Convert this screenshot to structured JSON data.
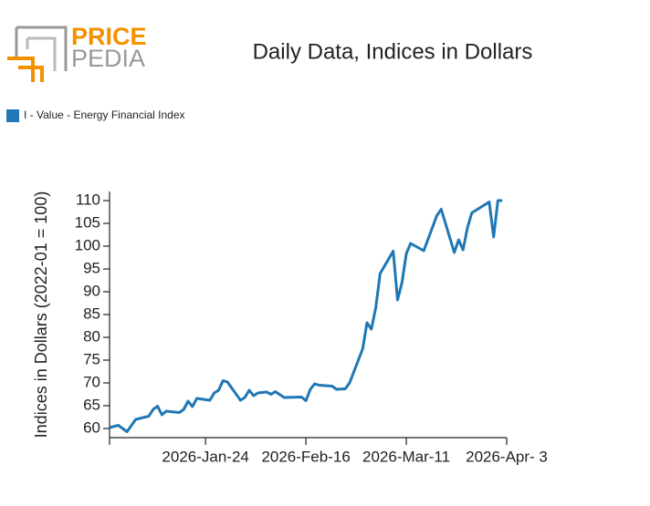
{
  "logo": {
    "top": "PRICE",
    "bottom": "PEDIA"
  },
  "chart_data": {
    "type": "line",
    "title": "Daily Data, Indices in Dollars",
    "y_label": "Indices in Dollars (2022-01 = 100)",
    "x": [
      "2026-01-02",
      "2026-01-04",
      "2026-01-06",
      "2026-01-08",
      "2026-01-11",
      "2026-01-12",
      "2026-01-13",
      "2026-01-14",
      "2026-01-15",
      "2026-01-18",
      "2026-01-19",
      "2026-01-20",
      "2026-01-21",
      "2026-01-22",
      "2026-01-25",
      "2026-01-26",
      "2026-01-27",
      "2026-01-28",
      "2026-01-29",
      "2026-02-01",
      "2026-02-02",
      "2026-02-03",
      "2026-02-04",
      "2026-02-05",
      "2026-02-07",
      "2026-02-08",
      "2026-02-09",
      "2026-02-11",
      "2026-02-15",
      "2026-02-16",
      "2026-02-17",
      "2026-02-18",
      "2026-02-19",
      "2026-02-22",
      "2026-02-23",
      "2026-02-25",
      "2026-02-26",
      "2026-03-01",
      "2026-03-02",
      "2026-03-03",
      "2026-03-04",
      "2026-03-05",
      "2026-03-08",
      "2026-03-09",
      "2026-03-10",
      "2026-03-11",
      "2026-03-12",
      "2026-03-15",
      "2026-03-18",
      "2026-03-19",
      "2026-03-22",
      "2026-03-23",
      "2026-03-24",
      "2026-03-25",
      "2026-03-26",
      "2026-03-30",
      "2026-03-31",
      "2026-04-01",
      "2026-04-02"
    ],
    "series": [
      {
        "name": "I - Value - Energy Financial Index",
        "color": "#1f77b4",
        "values": [
          60.2,
          60.7,
          59.3,
          62,
          62.7,
          64.2,
          64.9,
          63,
          63.8,
          63.5,
          64.2,
          66,
          64.8,
          66.6,
          66.2,
          67.8,
          68.4,
          70.5,
          70.2,
          66.2,
          66.8,
          68.4,
          67.2,
          67.8,
          68,
          67.5,
          68.1,
          66.8,
          66.9,
          66.1,
          68.6,
          69.8,
          69.5,
          69.3,
          68.6,
          68.7,
          70,
          77.5,
          83.2,
          81.8,
          86.5,
          94,
          98.9,
          88.2,
          92,
          98.4,
          100.6,
          99,
          106.7,
          108.1,
          98.6,
          101.4,
          99.2,
          104,
          107.3,
          109.7,
          102,
          110,
          110
        ]
      }
    ],
    "xlim": [
      "2026-01-02",
      "2026-04-03"
    ],
    "xticks": [
      {
        "value": "2026-01-24",
        "label": "2026-Jan-24"
      },
      {
        "value": "2026-02-16",
        "label": "2026-Feb-16"
      },
      {
        "value": "2026-03-11",
        "label": "2026-Mar-11"
      },
      {
        "value": "2026-04-03",
        "label": "2026-Apr- 3"
      }
    ],
    "ylim": [
      58,
      112
    ],
    "yticks": [
      60,
      65,
      70,
      75,
      80,
      85,
      90,
      95,
      100,
      105,
      110
    ],
    "legend": "top-left"
  }
}
